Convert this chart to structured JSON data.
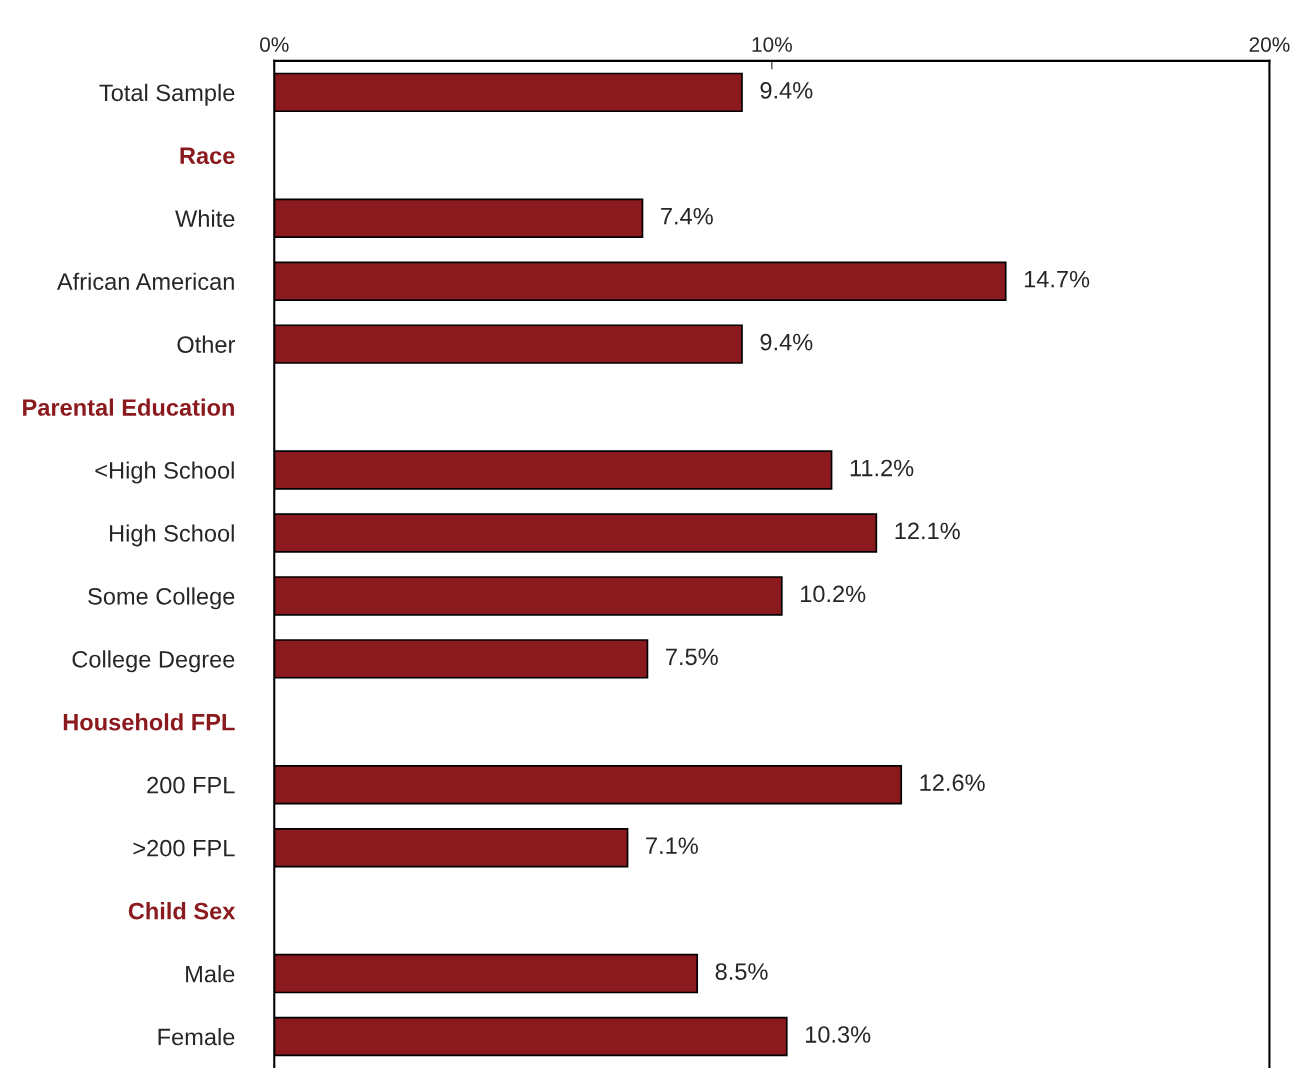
{
  "chart_data": {
    "type": "bar",
    "orientation": "horizontal",
    "categories": [
      "Total Sample",
      "Race",
      "White",
      "African American",
      "Other",
      "Parental Education",
      "<High School",
      "High School",
      "Some College",
      "College Degree",
      "Household FPL",
      "200 FPL",
      ">200 FPL",
      "Child Sex",
      "Male",
      "Female"
    ],
    "values": [
      9.4,
      null,
      7.4,
      14.7,
      9.4,
      null,
      11.2,
      12.1,
      10.2,
      7.5,
      null,
      12.6,
      7.1,
      null,
      8.5,
      10.3
    ],
    "value_labels": [
      "9.4%",
      null,
      "7.4%",
      "14.7%",
      "9.4%",
      null,
      "11.2%",
      "12.1%",
      "10.2%",
      "7.5%",
      null,
      "12.6%",
      "7.1%",
      null,
      "8.5%",
      "10.3%"
    ],
    "color": "#8b1a1e",
    "xlim": [
      0,
      20
    ],
    "xticks": [
      {
        "value": 0,
        "label": "0%"
      },
      {
        "value": 10,
        "label": "10%"
      },
      {
        "value": 20,
        "label": "20%"
      }
    ],
    "grid": false
  }
}
